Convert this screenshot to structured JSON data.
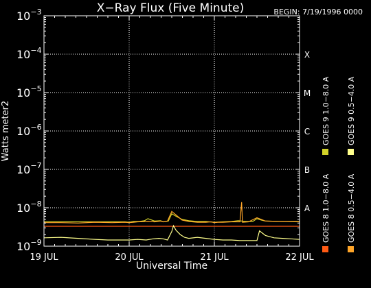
{
  "chart_data": {
    "type": "line",
    "title": "X−Ray Flux (Five Minute)",
    "begin_label": "BEGIN: 7/19/1996 0000",
    "xlabel": "Universal Time",
    "ylabel": "Watts meter2",
    "y_scale": "log",
    "ylim": [
      1e-09,
      0.001
    ],
    "xlim": [
      0,
      3
    ],
    "x_ticks": [
      {
        "value": 0,
        "label": "19 JUL"
      },
      {
        "value": 1,
        "label": "20 JUL"
      },
      {
        "value": 2,
        "label": "21 JUL"
      },
      {
        "value": 3,
        "label": "22 JUL"
      }
    ],
    "y_ticks": [
      {
        "value": 1e-09,
        "mantissa": "10",
        "exponent": "−9"
      },
      {
        "value": 1e-08,
        "mantissa": "10",
        "exponent": "−8"
      },
      {
        "value": 1e-07,
        "mantissa": "10",
        "exponent": "−7"
      },
      {
        "value": 1e-06,
        "mantissa": "10",
        "exponent": "−6"
      },
      {
        "value": 1e-05,
        "mantissa": "10",
        "exponent": "−5"
      },
      {
        "value": 0.0001,
        "mantissa": "10",
        "exponent": "−4"
      },
      {
        "value": 0.001,
        "mantissa": "10",
        "exponent": "−3"
      }
    ],
    "flare_classes": [
      {
        "label": "A",
        "value": 1e-08
      },
      {
        "label": "B",
        "value": 1e-07
      },
      {
        "label": "C",
        "value": 1e-06
      },
      {
        "label": "M",
        "value": 1e-05
      },
      {
        "label": "X",
        "value": 0.0001
      }
    ],
    "grid": true,
    "legend_position": "right",
    "legend_columns": [
      [
        {
          "name": "GOES 8  1.0−8.0 A",
          "color": "#ff5a14"
        },
        {
          "name": "GOES 9  1.0−8.0 A",
          "color": "#d2d228"
        }
      ],
      [
        {
          "name": "GOES 8  0.5−4.0 A",
          "color": "#ffa528"
        },
        {
          "name": "GOES 9  0.5−4.0 A",
          "color": "#ffff8c"
        }
      ]
    ],
    "series": [
      {
        "name": "GOES 8  1.0−8.0 A",
        "color": "#ff5a14",
        "x": [
          0,
          0.25,
          0.5,
          0.75,
          1.0,
          1.25,
          1.5,
          1.75,
          2.0,
          2.25,
          2.5,
          2.75,
          3.0
        ],
        "y": [
          3.3e-09,
          3.3e-09,
          3.3e-09,
          3.3e-09,
          3.3e-09,
          3.3e-09,
          3.3e-09,
          3.3e-09,
          3.3e-09,
          3.3e-09,
          3.3e-09,
          3.3e-09,
          3.3e-09
        ]
      },
      {
        "name": "GOES 9  1.0−8.0 A",
        "color": "#d2d228",
        "x": [
          0,
          0.2,
          0.4,
          0.6,
          0.8,
          0.95,
          1.0,
          1.05,
          1.12,
          1.18,
          1.22,
          1.3,
          1.37,
          1.4,
          1.46,
          1.5,
          1.55,
          1.62,
          1.7,
          1.8,
          1.9,
          2.0,
          2.1,
          2.2,
          2.28,
          2.32,
          2.38,
          2.45,
          2.5,
          2.55,
          2.6,
          2.8,
          3.0
        ],
        "y": [
          4.3e-09,
          4.3e-09,
          4.3e-09,
          4.3e-09,
          4.3e-09,
          4.3e-09,
          4.2e-09,
          4.4e-09,
          4.4e-09,
          4.6e-09,
          5.2e-09,
          4.5e-09,
          4.6e-09,
          4.3e-09,
          4.5e-09,
          7e-09,
          6e-09,
          5e-09,
          4.6e-09,
          4.4e-09,
          4.4e-09,
          4.2e-09,
          4.3e-09,
          4.4e-09,
          4.6e-09,
          4.5e-09,
          4.4e-09,
          4.4e-09,
          5.2e-09,
          4.8e-09,
          4.5e-09,
          4.4e-09,
          4.4e-09
        ]
      },
      {
        "name": "GOES 8  0.5−4.0 A",
        "color": "#ffa528",
        "x": [
          0,
          0.2,
          0.4,
          0.6,
          0.8,
          0.95,
          1.0,
          1.05,
          1.1,
          1.22,
          1.3,
          1.37,
          1.4,
          1.45,
          1.5,
          1.55,
          1.62,
          1.7,
          1.8,
          1.9,
          1.96,
          2.0,
          2.04,
          2.1,
          2.2,
          2.3,
          2.32,
          2.33,
          2.4,
          2.5,
          2.6,
          2.8,
          3.0
        ],
        "y": [
          4.1e-09,
          4.1e-09,
          4e-09,
          4.2e-09,
          4.1e-09,
          4.2e-09,
          4.1e-09,
          4.2e-09,
          4.3e-09,
          4.4e-09,
          4.3e-09,
          4.5e-09,
          4.3e-09,
          4.5e-09,
          8e-09,
          6.5e-09,
          4.8e-09,
          4.4e-09,
          4.2e-09,
          4.2e-09,
          4.3e-09,
          4.1e-09,
          4.2e-09,
          4.2e-09,
          4.3e-09,
          4.3e-09,
          1.4e-08,
          4.2e-09,
          4.3e-09,
          5.5e-09,
          4.5e-09,
          4.4e-09,
          4.3e-09
        ]
      },
      {
        "name": "GOES 9  0.5−4.0 A",
        "color": "#ffff8c",
        "x": [
          0,
          0.2,
          0.4,
          0.6,
          0.75,
          0.9,
          1.0,
          1.1,
          1.2,
          1.28,
          1.35,
          1.4,
          1.45,
          1.5,
          1.52,
          1.55,
          1.6,
          1.65,
          1.7,
          1.8,
          1.9,
          2.0,
          2.1,
          2.2,
          2.3,
          2.4,
          2.5,
          2.53,
          2.6,
          2.7,
          2.8,
          2.9,
          3.0
        ],
        "y": [
          1.65e-09,
          1.7e-09,
          1.6e-09,
          1.5e-09,
          1.45e-09,
          1.45e-09,
          1.45e-09,
          1.5e-09,
          1.45e-09,
          1.55e-09,
          1.6e-09,
          1.55e-09,
          1.45e-09,
          2.4e-09,
          3.4e-09,
          2.6e-09,
          2e-09,
          1.7e-09,
          1.6e-09,
          1.7e-09,
          1.6e-09,
          1.5e-09,
          1.45e-09,
          1.45e-09,
          1.4e-09,
          1.4e-09,
          1.4e-09,
          2.5e-09,
          1.9e-09,
          1.65e-09,
          1.6e-09,
          1.55e-09,
          1.5e-09
        ]
      }
    ]
  }
}
